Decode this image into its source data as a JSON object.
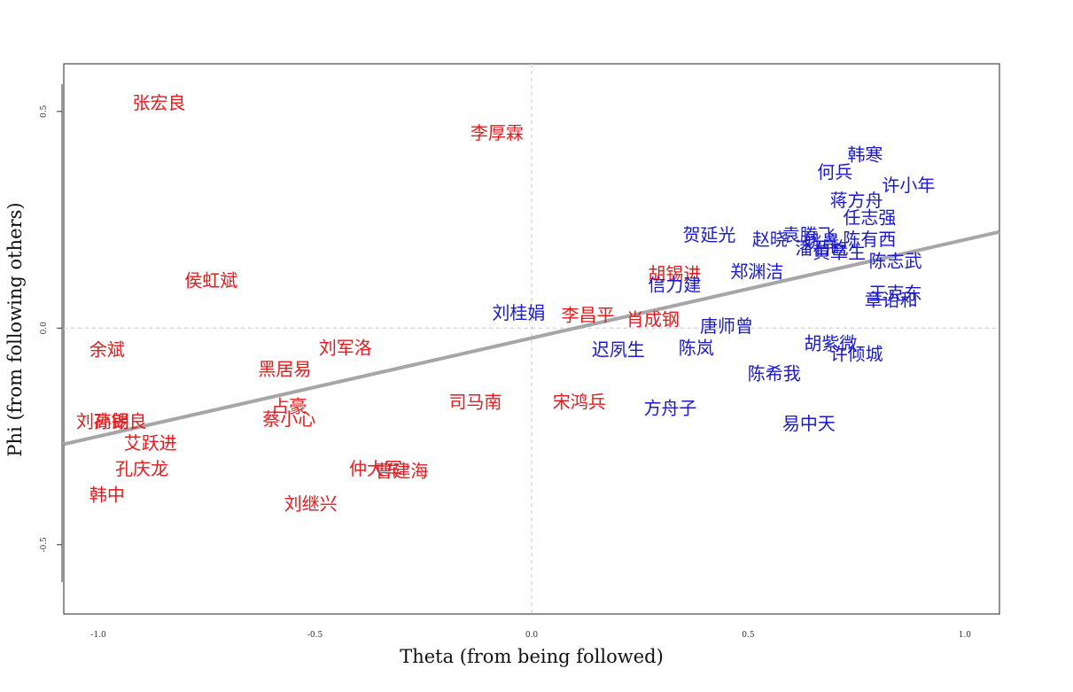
{
  "chart_data": {
    "type": "scatter",
    "xlabel": "Theta (from being followed)",
    "ylabel": "Phi (from following others)",
    "xlim": [
      -1.08,
      1.08
    ],
    "ylim": [
      -0.66,
      0.61
    ],
    "x_ticks": [
      -1.0,
      -0.5,
      0.0,
      0.5,
      1.0
    ],
    "x_tick_labels": [
      "-1.0",
      "-0.5",
      "0.0",
      "0.5",
      "1.0"
    ],
    "y_ticks": [
      -0.5,
      0.0,
      0.5
    ],
    "y_tick_labels": [
      "-0.5",
      "0.0",
      "0.5"
    ],
    "reference_lines": {
      "x": 0.0,
      "y": 0.0,
      "style": "dashed",
      "color": "#d9d9d9"
    },
    "fit_line": {
      "x": [
        -1.08,
        1.08
      ],
      "y": [
        -0.268,
        0.222
      ],
      "color": "#a6a6a6"
    },
    "grid": false,
    "colors": {
      "group_red": "#e41a1c",
      "group_blue": "#1a1acc"
    },
    "series": [
      {
        "color": "#e41a1c",
        "points": [
          {
            "label": "张宏良",
            "x": -0.86,
            "y": 0.52
          },
          {
            "label": "李厚霖",
            "x": -0.08,
            "y": 0.45
          },
          {
            "label": "侯虹斌",
            "x": -0.74,
            "y": 0.11
          },
          {
            "label": "胡锡进",
            "x": 0.33,
            "y": 0.125
          },
          {
            "label": "李昌平",
            "x": 0.13,
            "y": 0.03
          },
          {
            "label": "肖成钢",
            "x": 0.28,
            "y": 0.02
          },
          {
            "label": "余斌",
            "x": -0.98,
            "y": -0.05
          },
          {
            "label": "刘军洛",
            "x": -0.43,
            "y": -0.045
          },
          {
            "label": "黑居易",
            "x": -0.57,
            "y": -0.095
          },
          {
            "label": "司马南",
            "x": -0.13,
            "y": -0.17
          },
          {
            "label": "宋鸿兵",
            "x": 0.11,
            "y": -0.17
          },
          {
            "label": "占豪",
            "x": -0.56,
            "y": -0.18
          },
          {
            "label": "蔡小心",
            "x": -0.56,
            "y": -0.21
          },
          {
            "label": "刘高朗",
            "x": -0.99,
            "y": -0.215
          },
          {
            "label": "孙锡良",
            "x": -0.95,
            "y": -0.215
          },
          {
            "label": "艾跃进",
            "x": -0.88,
            "y": -0.265
          },
          {
            "label": "仲大军",
            "x": -0.36,
            "y": -0.325
          },
          {
            "label": "曹建海",
            "x": -0.3,
            "y": -0.33
          },
          {
            "label": "孔庆龙",
            "x": -0.9,
            "y": -0.325
          },
          {
            "label": "韩中",
            "x": -0.98,
            "y": -0.385
          },
          {
            "label": "刘继兴",
            "x": -0.51,
            "y": -0.405
          }
        ]
      },
      {
        "color": "#1a1acc",
        "points": [
          {
            "label": "韩寒",
            "x": 0.77,
            "y": 0.4
          },
          {
            "label": "何兵",
            "x": 0.7,
            "y": 0.36
          },
          {
            "label": "许小年",
            "x": 0.87,
            "y": 0.33
          },
          {
            "label": "蒋方舟",
            "x": 0.75,
            "y": 0.295
          },
          {
            "label": "任志强",
            "x": 0.78,
            "y": 0.255
          },
          {
            "label": "贺延光",
            "x": 0.41,
            "y": 0.215
          },
          {
            "label": "赵晓",
            "x": 0.55,
            "y": 0.205
          },
          {
            "label": "袁腾飞",
            "x": 0.64,
            "y": 0.215
          },
          {
            "label": "陈有西",
            "x": 0.78,
            "y": 0.205
          },
          {
            "label": "潘石屹",
            "x": 0.67,
            "y": 0.185
          },
          {
            "label": "姚晨",
            "x": 0.67,
            "y": 0.2
          },
          {
            "label": "黄章生",
            "x": 0.71,
            "y": 0.175
          },
          {
            "label": "陈志武",
            "x": 0.84,
            "y": 0.155
          },
          {
            "label": "郑渊洁",
            "x": 0.52,
            "y": 0.13
          },
          {
            "label": "信力建",
            "x": 0.33,
            "y": 0.1
          },
          {
            "label": "王克东",
            "x": 0.84,
            "y": 0.08
          },
          {
            "label": "章诒和",
            "x": 0.83,
            "y": 0.065
          },
          {
            "label": "刘桂娟",
            "x": -0.03,
            "y": 0.035
          },
          {
            "label": "唐师曾",
            "x": 0.45,
            "y": 0.005
          },
          {
            "label": "迟夙生",
            "x": 0.2,
            "y": -0.05
          },
          {
            "label": "陈岚",
            "x": 0.38,
            "y": -0.045
          },
          {
            "label": "胡紫微",
            "x": 0.69,
            "y": -0.035
          },
          {
            "label": "许倾城",
            "x": 0.75,
            "y": -0.06
          },
          {
            "label": "陈希我",
            "x": 0.56,
            "y": -0.105
          },
          {
            "label": "方舟子",
            "x": 0.32,
            "y": -0.185
          },
          {
            "label": "易中天",
            "x": 0.64,
            "y": -0.22
          }
        ]
      }
    ]
  }
}
